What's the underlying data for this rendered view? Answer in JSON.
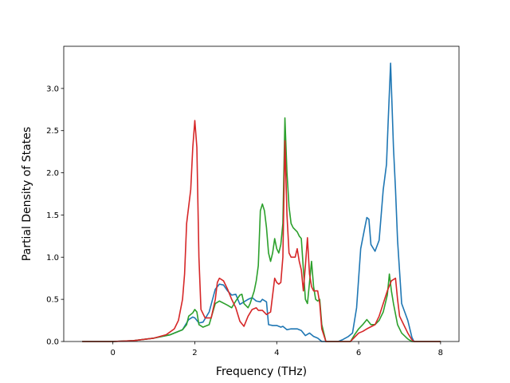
{
  "chart_data": {
    "type": "line",
    "title": "",
    "xlabel": "Frequency (THz)",
    "ylabel": "Partial Density of States",
    "xlim": [
      -1.2,
      8.45
    ],
    "ylim": [
      0,
      3.5
    ],
    "xticks": [
      0,
      2,
      4,
      6,
      8
    ],
    "xtick_labels": [
      "0",
      "2",
      "4",
      "6",
      "8"
    ],
    "yticks": [
      0.0,
      0.5,
      1.0,
      1.5,
      2.0,
      2.5,
      3.0
    ],
    "ytick_labels": [
      "0.0",
      "0.5",
      "1.0",
      "1.5",
      "2.0",
      "2.5",
      "3.0"
    ],
    "grid": false,
    "legend": "none",
    "series": [
      {
        "color": "#1f77b4",
        "points": [
          [
            -0.75,
            0.0
          ],
          [
            0.0,
            0.0
          ],
          [
            0.5,
            0.01
          ],
          [
            1.0,
            0.04
          ],
          [
            1.4,
            0.08
          ],
          [
            1.7,
            0.14
          ],
          [
            1.85,
            0.26
          ],
          [
            1.95,
            0.29
          ],
          [
            2.0,
            0.28
          ],
          [
            2.1,
            0.22
          ],
          [
            2.2,
            0.23
          ],
          [
            2.35,
            0.35
          ],
          [
            2.5,
            0.62
          ],
          [
            2.6,
            0.68
          ],
          [
            2.7,
            0.67
          ],
          [
            2.8,
            0.6
          ],
          [
            2.9,
            0.55
          ],
          [
            3.0,
            0.56
          ],
          [
            3.1,
            0.44
          ],
          [
            3.2,
            0.47
          ],
          [
            3.3,
            0.5
          ],
          [
            3.4,
            0.52
          ],
          [
            3.5,
            0.48
          ],
          [
            3.6,
            0.47
          ],
          [
            3.65,
            0.5
          ],
          [
            3.75,
            0.47
          ],
          [
            3.8,
            0.2
          ],
          [
            3.9,
            0.19
          ],
          [
            4.0,
            0.19
          ],
          [
            4.1,
            0.17
          ],
          [
            4.15,
            0.18
          ],
          [
            4.25,
            0.14
          ],
          [
            4.35,
            0.15
          ],
          [
            4.5,
            0.15
          ],
          [
            4.6,
            0.13
          ],
          [
            4.7,
            0.07
          ],
          [
            4.8,
            0.1
          ],
          [
            4.9,
            0.06
          ],
          [
            5.0,
            0.04
          ],
          [
            5.1,
            0.0
          ],
          [
            5.5,
            0.0
          ],
          [
            5.6,
            0.02
          ],
          [
            5.75,
            0.06
          ],
          [
            5.85,
            0.1
          ],
          [
            5.95,
            0.4
          ],
          [
            6.05,
            1.1
          ],
          [
            6.15,
            1.35
          ],
          [
            6.2,
            1.47
          ],
          [
            6.25,
            1.45
          ],
          [
            6.3,
            1.15
          ],
          [
            6.4,
            1.07
          ],
          [
            6.5,
            1.2
          ],
          [
            6.6,
            1.8
          ],
          [
            6.68,
            2.1
          ],
          [
            6.72,
            2.6
          ],
          [
            6.78,
            3.3
          ],
          [
            6.85,
            2.3
          ],
          [
            6.9,
            1.8
          ],
          [
            6.95,
            1.2
          ],
          [
            7.05,
            0.45
          ],
          [
            7.2,
            0.25
          ],
          [
            7.3,
            0.05
          ],
          [
            7.35,
            0.0
          ],
          [
            8.0,
            0.0
          ]
        ]
      },
      {
        "color": "#2ca02c",
        "points": [
          [
            -0.75,
            0.0
          ],
          [
            0.0,
            0.0
          ],
          [
            0.5,
            0.01
          ],
          [
            1.0,
            0.04
          ],
          [
            1.4,
            0.08
          ],
          [
            1.7,
            0.14
          ],
          [
            1.8,
            0.2
          ],
          [
            1.85,
            0.3
          ],
          [
            1.95,
            0.34
          ],
          [
            2.0,
            0.38
          ],
          [
            2.05,
            0.35
          ],
          [
            2.1,
            0.2
          ],
          [
            2.2,
            0.17
          ],
          [
            2.35,
            0.2
          ],
          [
            2.5,
            0.45
          ],
          [
            2.6,
            0.48
          ],
          [
            2.8,
            0.43
          ],
          [
            2.9,
            0.4
          ],
          [
            3.0,
            0.48
          ],
          [
            3.1,
            0.55
          ],
          [
            3.15,
            0.56
          ],
          [
            3.2,
            0.45
          ],
          [
            3.3,
            0.4
          ],
          [
            3.35,
            0.45
          ],
          [
            3.45,
            0.6
          ],
          [
            3.5,
            0.72
          ],
          [
            3.55,
            0.9
          ],
          [
            3.6,
            1.55
          ],
          [
            3.65,
            1.63
          ],
          [
            3.7,
            1.55
          ],
          [
            3.75,
            1.35
          ],
          [
            3.8,
            1.05
          ],
          [
            3.85,
            0.95
          ],
          [
            3.9,
            1.05
          ],
          [
            3.95,
            1.22
          ],
          [
            4.0,
            1.1
          ],
          [
            4.05,
            1.05
          ],
          [
            4.1,
            1.15
          ],
          [
            4.15,
            1.4
          ],
          [
            4.2,
            2.65
          ],
          [
            4.25,
            2.0
          ],
          [
            4.3,
            1.6
          ],
          [
            4.35,
            1.4
          ],
          [
            4.4,
            1.35
          ],
          [
            4.5,
            1.3
          ],
          [
            4.55,
            1.25
          ],
          [
            4.6,
            1.22
          ],
          [
            4.7,
            0.5
          ],
          [
            4.75,
            0.45
          ],
          [
            4.8,
            0.7
          ],
          [
            4.85,
            0.95
          ],
          [
            4.9,
            0.65
          ],
          [
            4.95,
            0.5
          ],
          [
            5.0,
            0.48
          ],
          [
            5.05,
            0.5
          ],
          [
            5.1,
            0.2
          ],
          [
            5.2,
            0.0
          ],
          [
            5.8,
            0.0
          ],
          [
            5.9,
            0.08
          ],
          [
            6.0,
            0.15
          ],
          [
            6.1,
            0.2
          ],
          [
            6.2,
            0.26
          ],
          [
            6.3,
            0.2
          ],
          [
            6.4,
            0.2
          ],
          [
            6.5,
            0.25
          ],
          [
            6.6,
            0.35
          ],
          [
            6.7,
            0.55
          ],
          [
            6.75,
            0.8
          ],
          [
            6.8,
            0.6
          ],
          [
            6.85,
            0.45
          ],
          [
            6.95,
            0.2
          ],
          [
            7.05,
            0.1
          ],
          [
            7.2,
            0.03
          ],
          [
            7.3,
            0.0
          ],
          [
            8.0,
            0.0
          ]
        ]
      },
      {
        "color": "#d62728",
        "points": [
          [
            -0.75,
            0.0
          ],
          [
            0.0,
            0.0
          ],
          [
            0.5,
            0.01
          ],
          [
            1.0,
            0.04
          ],
          [
            1.3,
            0.08
          ],
          [
            1.5,
            0.15
          ],
          [
            1.6,
            0.25
          ],
          [
            1.7,
            0.5
          ],
          [
            1.75,
            0.8
          ],
          [
            1.8,
            1.4
          ],
          [
            1.85,
            1.6
          ],
          [
            1.9,
            1.8
          ],
          [
            1.95,
            2.3
          ],
          [
            2.0,
            2.62
          ],
          [
            2.05,
            2.3
          ],
          [
            2.1,
            1.0
          ],
          [
            2.15,
            0.38
          ],
          [
            2.25,
            0.28
          ],
          [
            2.4,
            0.28
          ],
          [
            2.5,
            0.5
          ],
          [
            2.55,
            0.7
          ],
          [
            2.6,
            0.75
          ],
          [
            2.7,
            0.72
          ],
          [
            2.8,
            0.62
          ],
          [
            2.9,
            0.5
          ],
          [
            3.0,
            0.4
          ],
          [
            3.1,
            0.24
          ],
          [
            3.2,
            0.18
          ],
          [
            3.3,
            0.3
          ],
          [
            3.4,
            0.38
          ],
          [
            3.5,
            0.4
          ],
          [
            3.55,
            0.37
          ],
          [
            3.65,
            0.37
          ],
          [
            3.75,
            0.32
          ],
          [
            3.85,
            0.35
          ],
          [
            3.9,
            0.55
          ],
          [
            3.95,
            0.75
          ],
          [
            4.0,
            0.7
          ],
          [
            4.05,
            0.68
          ],
          [
            4.1,
            0.7
          ],
          [
            4.15,
            1.0
          ],
          [
            4.2,
            2.38
          ],
          [
            4.25,
            1.5
          ],
          [
            4.3,
            1.05
          ],
          [
            4.35,
            1.0
          ],
          [
            4.45,
            1.0
          ],
          [
            4.5,
            1.1
          ],
          [
            4.55,
            0.95
          ],
          [
            4.6,
            0.85
          ],
          [
            4.65,
            0.6
          ],
          [
            4.7,
            0.9
          ],
          [
            4.75,
            1.23
          ],
          [
            4.8,
            0.8
          ],
          [
            4.85,
            0.65
          ],
          [
            4.9,
            0.6
          ],
          [
            5.0,
            0.6
          ],
          [
            5.05,
            0.45
          ],
          [
            5.1,
            0.15
          ],
          [
            5.2,
            0.0
          ],
          [
            5.8,
            0.0
          ],
          [
            5.9,
            0.05
          ],
          [
            6.0,
            0.1
          ],
          [
            6.1,
            0.12
          ],
          [
            6.2,
            0.15
          ],
          [
            6.4,
            0.2
          ],
          [
            6.5,
            0.3
          ],
          [
            6.6,
            0.45
          ],
          [
            6.7,
            0.6
          ],
          [
            6.8,
            0.72
          ],
          [
            6.9,
            0.75
          ],
          [
            6.95,
            0.5
          ],
          [
            7.0,
            0.3
          ],
          [
            7.1,
            0.2
          ],
          [
            7.2,
            0.1
          ],
          [
            7.3,
            0.02
          ],
          [
            7.35,
            0.0
          ],
          [
            8.0,
            0.0
          ]
        ]
      }
    ]
  }
}
